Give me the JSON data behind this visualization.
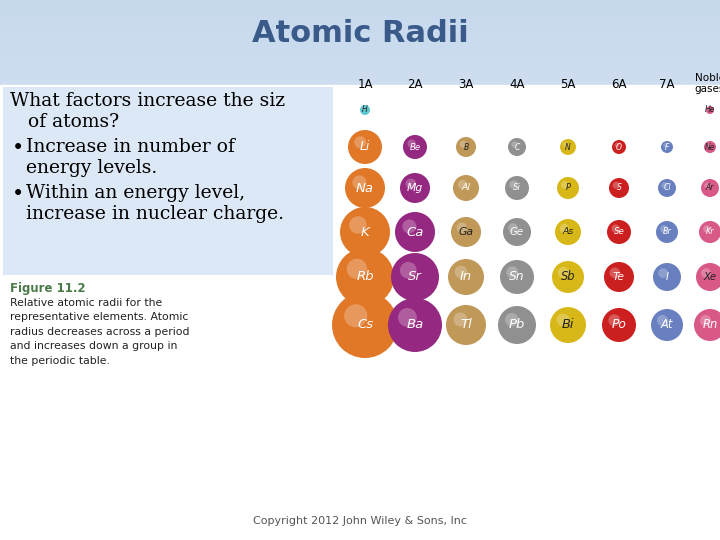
{
  "title": "Atomic Radii",
  "title_fontsize": 22,
  "title_color": "#3A5A8A",
  "copyright": "Copyright 2012 John Wiley & Sons, Inc",
  "figure_label": "Figure 11.2",
  "figure_label_color": "#4A7A4A",
  "figure_text": "Relative atomic radii for the\nrepresentative elements. Atomic\nradius decreases across a period\nand increases down a group in\nthe periodic table.",
  "group_labels": [
    "1A",
    "2A",
    "3A",
    "4A",
    "5A",
    "6A",
    "7A"
  ],
  "noble_label": "Noble\ngases",
  "atoms": [
    {
      "symbol": "H",
      "row": 0,
      "col": 0,
      "color": "#5BC8CE",
      "r": 5,
      "text_color": "#222222"
    },
    {
      "symbol": "He",
      "row": 0,
      "col": 7,
      "color": "#D85888",
      "r": 4,
      "text_color": "#222222"
    },
    {
      "symbol": "Li",
      "row": 1,
      "col": 0,
      "color": "#E07828",
      "r": 17,
      "text_color": "white"
    },
    {
      "symbol": "Be",
      "row": 1,
      "col": 1,
      "color": "#952880",
      "r": 12,
      "text_color": "white"
    },
    {
      "symbol": "B",
      "row": 1,
      "col": 2,
      "color": "#C09858",
      "r": 10,
      "text_color": "#222222"
    },
    {
      "symbol": "C",
      "row": 1,
      "col": 3,
      "color": "#909090",
      "r": 9,
      "text_color": "white"
    },
    {
      "symbol": "N",
      "row": 1,
      "col": 4,
      "color": "#D8B818",
      "r": 8,
      "text_color": "#222222"
    },
    {
      "symbol": "O",
      "row": 1,
      "col": 5,
      "color": "#CC2020",
      "r": 7,
      "text_color": "white"
    },
    {
      "symbol": "F",
      "row": 1,
      "col": 6,
      "color": "#6880C0",
      "r": 6,
      "text_color": "white"
    },
    {
      "symbol": "Ne",
      "row": 1,
      "col": 7,
      "color": "#D85888",
      "r": 6,
      "text_color": "#222222"
    },
    {
      "symbol": "Na",
      "row": 2,
      "col": 0,
      "color": "#E07828",
      "r": 20,
      "text_color": "white"
    },
    {
      "symbol": "Mg",
      "row": 2,
      "col": 1,
      "color": "#952880",
      "r": 15,
      "text_color": "white"
    },
    {
      "symbol": "Al",
      "row": 2,
      "col": 2,
      "color": "#C09858",
      "r": 13,
      "text_color": "white"
    },
    {
      "symbol": "Si",
      "row": 2,
      "col": 3,
      "color": "#909090",
      "r": 12,
      "text_color": "white"
    },
    {
      "symbol": "P",
      "row": 2,
      "col": 4,
      "color": "#D8B818",
      "r": 11,
      "text_color": "#222222"
    },
    {
      "symbol": "S",
      "row": 2,
      "col": 5,
      "color": "#CC2020",
      "r": 10,
      "text_color": "white"
    },
    {
      "symbol": "Cl",
      "row": 2,
      "col": 6,
      "color": "#6880C0",
      "r": 9,
      "text_color": "white"
    },
    {
      "symbol": "Ar",
      "row": 2,
      "col": 7,
      "color": "#D85888",
      "r": 9,
      "text_color": "#222222"
    },
    {
      "symbol": "K",
      "row": 3,
      "col": 0,
      "color": "#E07828",
      "r": 25,
      "text_color": "white"
    },
    {
      "symbol": "Ca",
      "row": 3,
      "col": 1,
      "color": "#952880",
      "r": 20,
      "text_color": "white"
    },
    {
      "symbol": "Ga",
      "row": 3,
      "col": 2,
      "color": "#C09858",
      "r": 15,
      "text_color": "#222222"
    },
    {
      "symbol": "Ge",
      "row": 3,
      "col": 3,
      "color": "#909090",
      "r": 14,
      "text_color": "white"
    },
    {
      "symbol": "As",
      "row": 3,
      "col": 4,
      "color": "#D8B818",
      "r": 13,
      "text_color": "#222222"
    },
    {
      "symbol": "Se",
      "row": 3,
      "col": 5,
      "color": "#CC2020",
      "r": 12,
      "text_color": "white"
    },
    {
      "symbol": "Br",
      "row": 3,
      "col": 6,
      "color": "#6880C0",
      "r": 11,
      "text_color": "white"
    },
    {
      "symbol": "Kr",
      "row": 3,
      "col": 7,
      "color": "#D85888",
      "r": 11,
      "text_color": "white"
    },
    {
      "symbol": "Rb",
      "row": 4,
      "col": 0,
      "color": "#E07828",
      "r": 29,
      "text_color": "white"
    },
    {
      "symbol": "Sr",
      "row": 4,
      "col": 1,
      "color": "#952880",
      "r": 24,
      "text_color": "white"
    },
    {
      "symbol": "In",
      "row": 4,
      "col": 2,
      "color": "#C09858",
      "r": 18,
      "text_color": "white"
    },
    {
      "symbol": "Sn",
      "row": 4,
      "col": 3,
      "color": "#909090",
      "r": 17,
      "text_color": "white"
    },
    {
      "symbol": "Sb",
      "row": 4,
      "col": 4,
      "color": "#D8B818",
      "r": 16,
      "text_color": "#222222"
    },
    {
      "symbol": "Te",
      "row": 4,
      "col": 5,
      "color": "#CC2020",
      "r": 15,
      "text_color": "white"
    },
    {
      "symbol": "I",
      "row": 4,
      "col": 6,
      "color": "#6880C0",
      "r": 14,
      "text_color": "white"
    },
    {
      "symbol": "Xe",
      "row": 4,
      "col": 7,
      "color": "#D85888",
      "r": 14,
      "text_color": "#222222"
    },
    {
      "symbol": "Cs",
      "row": 5,
      "col": 0,
      "color": "#E07828",
      "r": 33,
      "text_color": "white"
    },
    {
      "symbol": "Ba",
      "row": 5,
      "col": 1,
      "color": "#952880",
      "r": 27,
      "text_color": "white"
    },
    {
      "symbol": "Tl",
      "row": 5,
      "col": 2,
      "color": "#C09858",
      "r": 20,
      "text_color": "white"
    },
    {
      "symbol": "Pb",
      "row": 5,
      "col": 3,
      "color": "#909090",
      "r": 19,
      "text_color": "white"
    },
    {
      "symbol": "Bi",
      "row": 5,
      "col": 4,
      "color": "#D8B818",
      "r": 18,
      "text_color": "#222222"
    },
    {
      "symbol": "Po",
      "row": 5,
      "col": 5,
      "color": "#CC2020",
      "r": 17,
      "text_color": "white"
    },
    {
      "symbol": "At",
      "row": 5,
      "col": 6,
      "color": "#6880C0",
      "r": 16,
      "text_color": "white"
    },
    {
      "symbol": "Rn",
      "row": 5,
      "col": 7,
      "color": "#D85888",
      "r": 16,
      "text_color": "white"
    }
  ]
}
